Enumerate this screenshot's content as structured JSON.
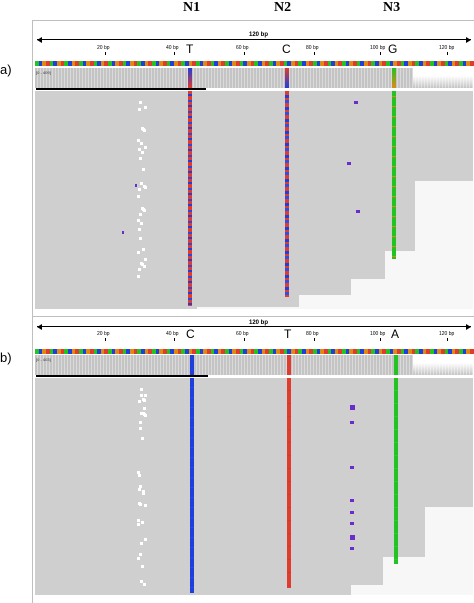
{
  "headers": {
    "n1": "N1",
    "n2": "N2",
    "n3": "N3"
  },
  "panel_a": {
    "label": "a)",
    "ruler_title": "120 bp",
    "ticks": [
      "20 bp",
      "40 bp",
      "60 bp",
      "80 bp",
      "100 bp",
      "120 bp"
    ],
    "coverage_label": "[0 - 409]",
    "alleles": {
      "n1": "T",
      "n2": "C",
      "n3": "G"
    }
  },
  "panel_b": {
    "label": "b)",
    "ruler_title": "120 bp",
    "ticks": [
      "20 bp",
      "40 bp",
      "60 bp",
      "80 bp",
      "100 bp",
      "120 bp"
    ],
    "coverage_label": "[0 - 403]",
    "alleles": {
      "n1": "C",
      "n2": "T",
      "n3": "A"
    }
  },
  "colors": {
    "A": "#22c322",
    "C": "#1f3fdc",
    "G": "#e08a16",
    "T": "#e03c2e",
    "read_gray": "#cfcfcf",
    "insertion": "#6a2dcc"
  }
}
